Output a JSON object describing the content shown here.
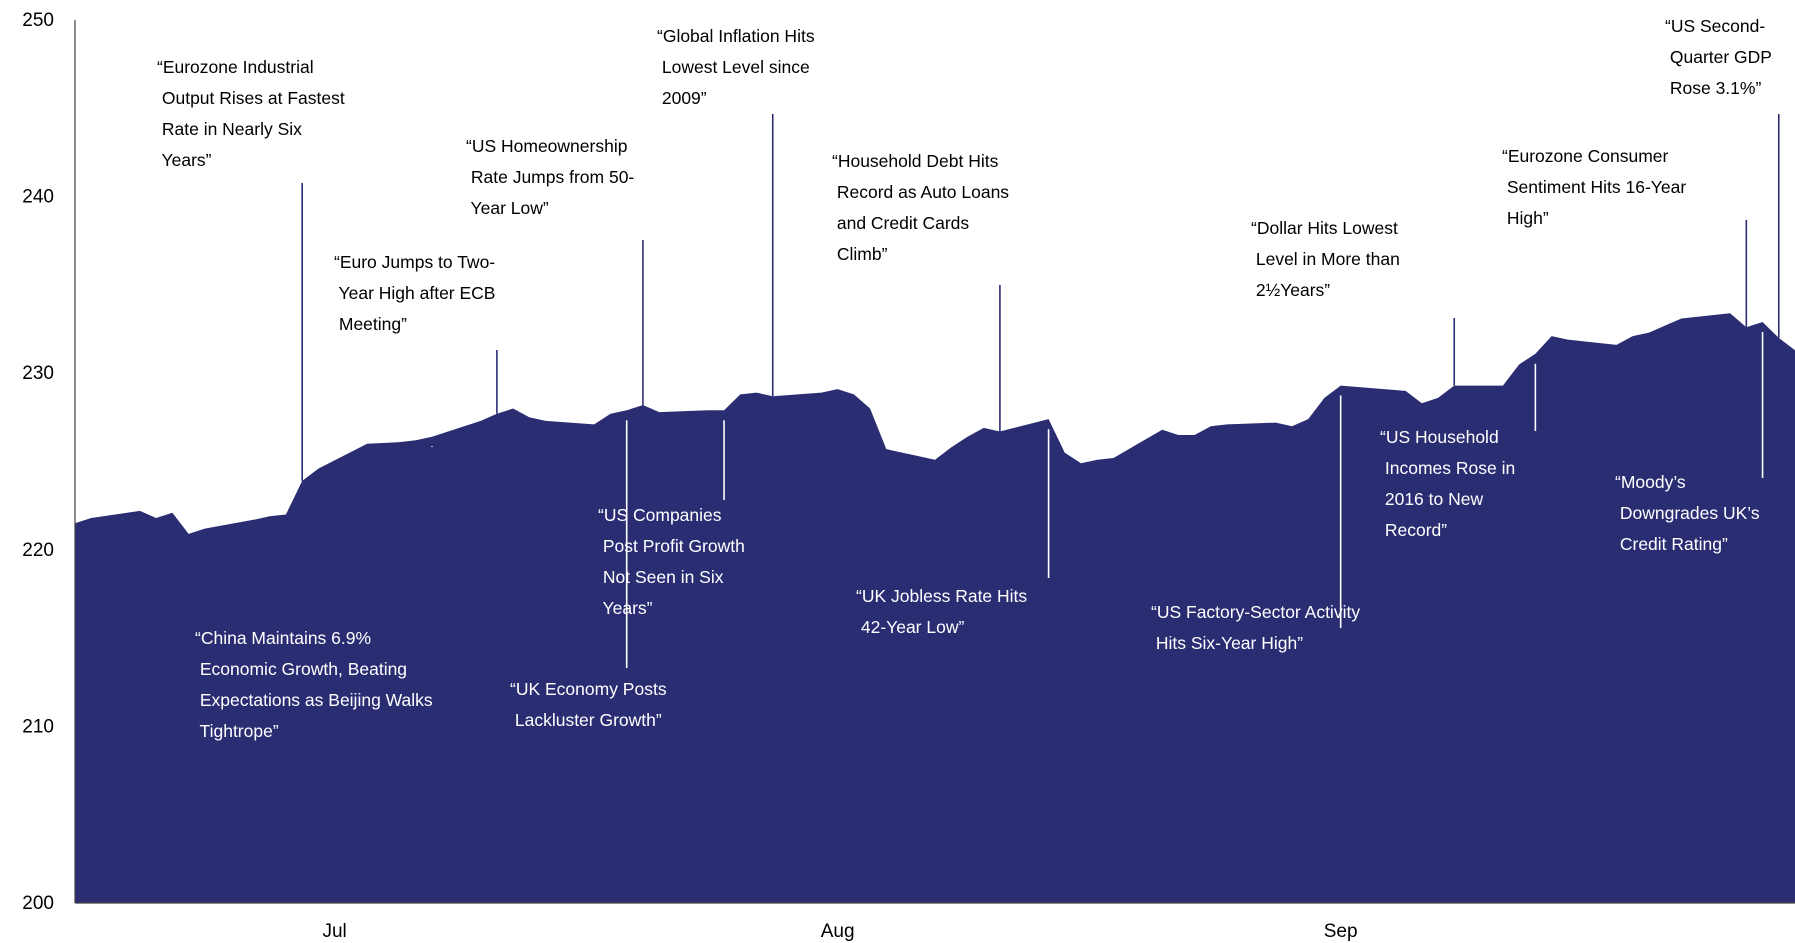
{
  "colors": {
    "area": "#2b2d73",
    "axis": "#404040",
    "text_on_white": "#000000",
    "text_on_area": "#ffffff"
  },
  "chart_data": {
    "type": "area",
    "title": "",
    "xlabel": "",
    "ylabel": "",
    "ylim": [
      200,
      250
    ],
    "yticks": [
      "200",
      "210",
      "220",
      "230",
      "240",
      "250"
    ],
    "xticks": [
      {
        "label": "Jul",
        "x": "2017-07-01"
      },
      {
        "label": "Aug",
        "x": "2017-08-01"
      },
      {
        "label": "Sep",
        "x": "2017-09-01"
      }
    ],
    "xlim": [
      "2017-06-15",
      "2017-09-29"
    ],
    "grid": false,
    "series": [
      {
        "values": [
          [
            "2017-06-15",
            221.5
          ],
          [
            "2017-06-16",
            221.8
          ],
          [
            "2017-06-19",
            222.2
          ],
          [
            "2017-06-20",
            221.8
          ],
          [
            "2017-06-21",
            222.1
          ],
          [
            "2017-06-22",
            220.9
          ],
          [
            "2017-06-23",
            221.2
          ],
          [
            "2017-06-26",
            221.7
          ],
          [
            "2017-06-27",
            221.9
          ],
          [
            "2017-06-28",
            222.0
          ],
          [
            "2017-06-29",
            223.9
          ],
          [
            "2017-06-30",
            224.6
          ],
          [
            "2017-07-03",
            226.0
          ],
          [
            "2017-07-05",
            226.1
          ],
          [
            "2017-07-06",
            226.2
          ],
          [
            "2017-07-07",
            226.4
          ],
          [
            "2017-07-10",
            227.3
          ],
          [
            "2017-07-11",
            227.7
          ],
          [
            "2017-07-12",
            228.0
          ],
          [
            "2017-07-13",
            227.5
          ],
          [
            "2017-07-14",
            227.3
          ],
          [
            "2017-07-17",
            227.1
          ],
          [
            "2017-07-18",
            227.7
          ],
          [
            "2017-07-19",
            227.9
          ],
          [
            "2017-07-20",
            228.2
          ],
          [
            "2017-07-21",
            227.8
          ],
          [
            "2017-07-24",
            227.9
          ],
          [
            "2017-07-25",
            227.9
          ],
          [
            "2017-07-26",
            228.8
          ],
          [
            "2017-07-27",
            228.9
          ],
          [
            "2017-07-28",
            228.7
          ],
          [
            "2017-07-31",
            228.9
          ],
          [
            "2017-08-01",
            229.1
          ],
          [
            "2017-08-02",
            228.8
          ],
          [
            "2017-08-03",
            228.0
          ],
          [
            "2017-08-04",
            225.7
          ],
          [
            "2017-08-07",
            225.1
          ],
          [
            "2017-08-08",
            225.8
          ],
          [
            "2017-08-09",
            226.4
          ],
          [
            "2017-08-10",
            226.9
          ],
          [
            "2017-08-11",
            226.7
          ],
          [
            "2017-08-14",
            227.4
          ],
          [
            "2017-08-15",
            225.5
          ],
          [
            "2017-08-16",
            224.9
          ],
          [
            "2017-08-17",
            225.1
          ],
          [
            "2017-08-18",
            225.2
          ],
          [
            "2017-08-21",
            226.8
          ],
          [
            "2017-08-22",
            226.5
          ],
          [
            "2017-08-23",
            226.5
          ],
          [
            "2017-08-24",
            227.0
          ],
          [
            "2017-08-25",
            227.1
          ],
          [
            "2017-08-28",
            227.2
          ],
          [
            "2017-08-29",
            227.0
          ],
          [
            "2017-08-30",
            227.4
          ],
          [
            "2017-08-31",
            228.6
          ],
          [
            "2017-09-01",
            229.3
          ],
          [
            "2017-09-05",
            229.0
          ],
          [
            "2017-09-06",
            228.3
          ],
          [
            "2017-09-07",
            228.6
          ],
          [
            "2017-09-08",
            229.3
          ],
          [
            "2017-09-11",
            229.3
          ],
          [
            "2017-09-12",
            230.5
          ],
          [
            "2017-09-13",
            231.1
          ],
          [
            "2017-09-14",
            232.1
          ],
          [
            "2017-09-15",
            231.9
          ],
          [
            "2017-09-18",
            231.6
          ],
          [
            "2017-09-19",
            232.1
          ],
          [
            "2017-09-20",
            232.3
          ],
          [
            "2017-09-21",
            232.7
          ],
          [
            "2017-09-22",
            233.1
          ],
          [
            "2017-09-25",
            233.4
          ],
          [
            "2017-09-26",
            232.6
          ],
          [
            "2017-09-27",
            232.9
          ],
          [
            "2017-09-28",
            232.0
          ],
          [
            "2017-09-29",
            231.3
          ]
        ]
      }
    ],
    "annotations": [
      {
        "lines": [
          "“Eurozone Industrial",
          " Output Rises at Fastest",
          " Rate in Nearly Six",
          " Years”"
        ],
        "x": "2017-06-29",
        "position": "above"
      },
      {
        "lines": [
          "“China Maintains 6.9%",
          " Economic Growth, Beating",
          " Expectations as Beijing Walks",
          " Tightrope”"
        ],
        "x": "2017-07-07",
        "position": "below"
      },
      {
        "lines": [
          "“Euro Jumps to Two-",
          " Year High after ECB",
          " Meeting”"
        ],
        "x": "2017-07-11",
        "position": "above"
      },
      {
        "lines": [
          "“US Homeownership",
          " Rate Jumps from 50-",
          " Year Low”"
        ],
        "x": "2017-07-20",
        "position": "above"
      },
      {
        "lines": [
          "“UK Economy Posts",
          " Lackluster Growth”"
        ],
        "x": "2017-07-19",
        "position": "below"
      },
      {
        "lines": [
          "“US Companies",
          " Post Profit Growth",
          " Not Seen in Six",
          " Years”"
        ],
        "x": "2017-07-25",
        "position": "below"
      },
      {
        "lines": [
          "“Global Inflation Hits",
          " Lowest Level since",
          " 2009”"
        ],
        "x": "2017-07-28",
        "position": "above"
      },
      {
        "lines": [
          "“Household Debt Hits",
          " Record as Auto Loans",
          " and Credit Cards",
          " Climb”"
        ],
        "x": "2017-08-11",
        "position": "above"
      },
      {
        "lines": [
          "“UK Jobless Rate Hits",
          " 42-Year Low”"
        ],
        "x": "2017-08-14",
        "position": "below"
      },
      {
        "lines": [
          "“US Factory-Sector Activity",
          " Hits Six-Year High”"
        ],
        "x": "2017-09-01",
        "position": "below"
      },
      {
        "lines": [
          "“Dollar Hits Lowest",
          " Level in More than",
          " 2½Years”"
        ],
        "x": "2017-09-08",
        "position": "above"
      },
      {
        "lines": [
          "“US Household",
          " Incomes Rose in",
          " 2016 to New",
          " Record”"
        ],
        "x": "2017-09-13",
        "position": "below"
      },
      {
        "lines": [
          "“Eurozone Consumer",
          " Sentiment Hits 16-Year",
          " High”"
        ],
        "x": "2017-09-26",
        "position": "above"
      },
      {
        "lines": [
          "“Moody’s",
          " Downgrades UK’s",
          " Credit Rating”"
        ],
        "x": "2017-09-27",
        "position": "below"
      },
      {
        "lines": [
          "“US Second-",
          " Quarter GDP",
          " Rose 3.1%”"
        ],
        "x": "2017-09-28",
        "position": "above"
      }
    ]
  }
}
